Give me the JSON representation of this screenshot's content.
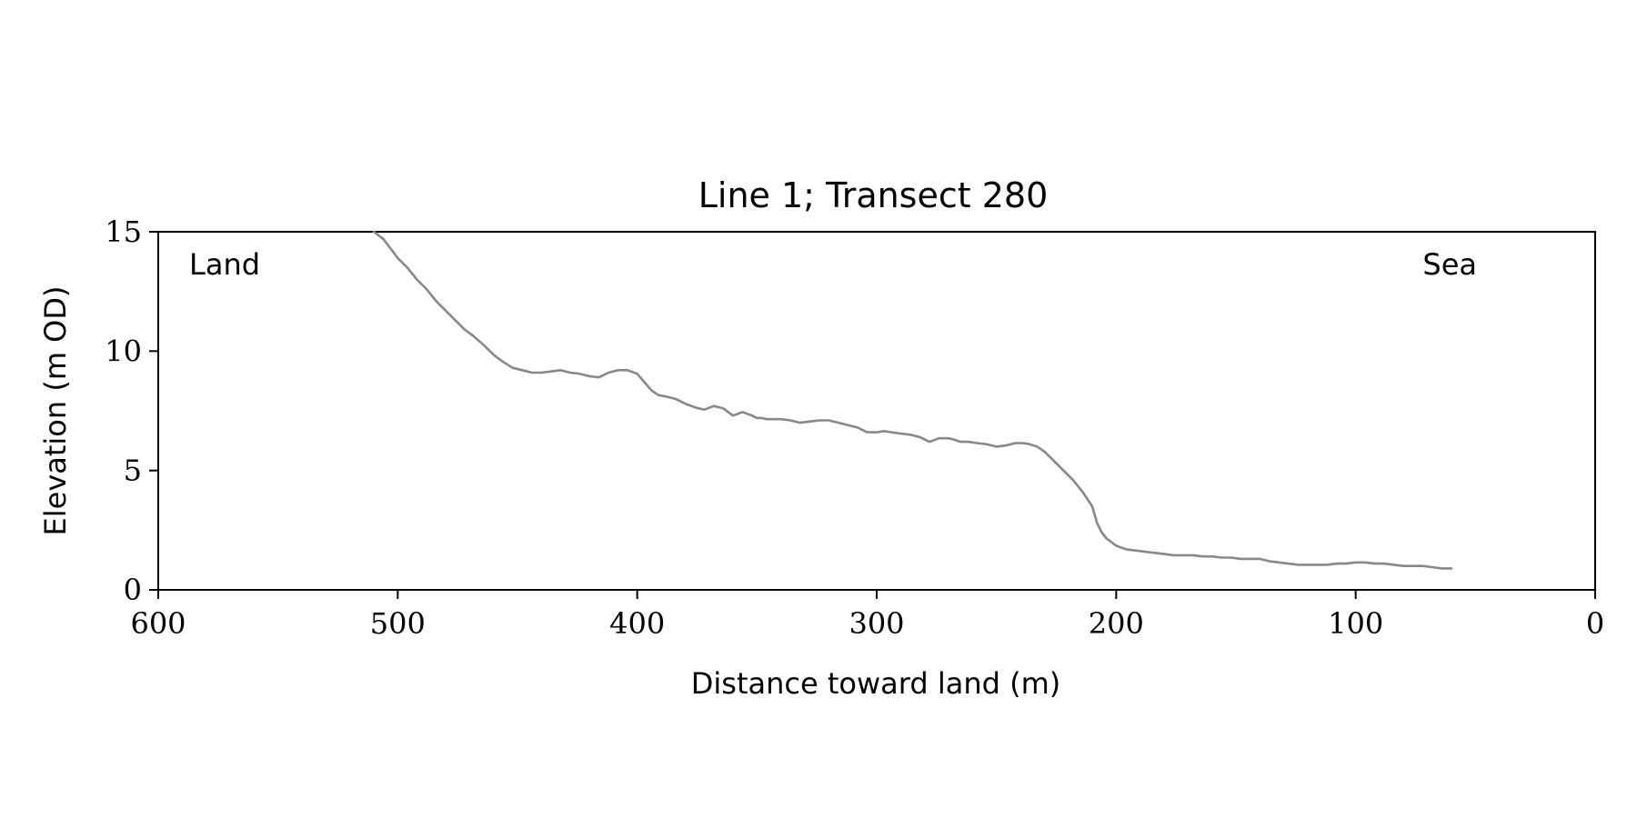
{
  "chart_data": {
    "type": "line",
    "title": "Line 1; Transect 280",
    "xlabel": "Distance toward land (m)",
    "ylabel": "Elevation (m OD)",
    "xlim": [
      600,
      0
    ],
    "ylim": [
      0,
      15
    ],
    "x_ticks": [
      "600",
      "500",
      "400",
      "300",
      "200",
      "100",
      "0"
    ],
    "y_ticks": [
      "0",
      "5",
      "10",
      "15"
    ],
    "grid": false,
    "annotations": {
      "left": "Land",
      "right": "Sea"
    },
    "line_color": "#888888",
    "series": [
      {
        "x": [
          510,
          506,
          503,
          500,
          496,
          492,
          488,
          484,
          480,
          476,
          472,
          468,
          464,
          460,
          456,
          452,
          448,
          444,
          440,
          436,
          432,
          428,
          424,
          420,
          416,
          412,
          408,
          404,
          400,
          397,
          394,
          391,
          388,
          384,
          380,
          376,
          372,
          368,
          364,
          360,
          356,
          352,
          350,
          348,
          346,
          344,
          340,
          336,
          332,
          328,
          324,
          320,
          316,
          312,
          308,
          304,
          300,
          297,
          294,
          290,
          286,
          282,
          278,
          274,
          270,
          268,
          265,
          262,
          258,
          254,
          250,
          246,
          242,
          239,
          236,
          233,
          230,
          228,
          225,
          222,
          218,
          214,
          210,
          208,
          206,
          204,
          202,
          200,
          196,
          192,
          188,
          184,
          180,
          176,
          172,
          168,
          164,
          160,
          156,
          152,
          148,
          144,
          140,
          136,
          132,
          128,
          124,
          120,
          116,
          112,
          108,
          104,
          100,
          96,
          92,
          88,
          84,
          80,
          76,
          72,
          68,
          64,
          60
        ],
        "y": [
          15.0,
          14.7,
          14.3,
          13.9,
          13.5,
          13.0,
          12.6,
          12.1,
          11.7,
          11.3,
          10.9,
          10.6,
          10.25,
          9.85,
          9.55,
          9.3,
          9.2,
          9.1,
          9.1,
          9.15,
          9.2,
          9.1,
          9.05,
          8.95,
          8.9,
          9.1,
          9.2,
          9.2,
          9.05,
          8.7,
          8.35,
          8.15,
          8.1,
          8.0,
          7.8,
          7.65,
          7.55,
          7.7,
          7.6,
          7.3,
          7.45,
          7.3,
          7.2,
          7.2,
          7.15,
          7.15,
          7.15,
          7.1,
          7.0,
          7.05,
          7.1,
          7.1,
          7.0,
          6.9,
          6.8,
          6.6,
          6.6,
          6.65,
          6.6,
          6.55,
          6.5,
          6.4,
          6.2,
          6.35,
          6.35,
          6.3,
          6.2,
          6.2,
          6.15,
          6.1,
          6.0,
          6.05,
          6.15,
          6.15,
          6.1,
          6.0,
          5.8,
          5.6,
          5.3,
          5.0,
          4.6,
          4.1,
          3.5,
          2.8,
          2.4,
          2.15,
          2.0,
          1.85,
          1.7,
          1.65,
          1.6,
          1.55,
          1.5,
          1.45,
          1.45,
          1.45,
          1.4,
          1.4,
          1.35,
          1.35,
          1.3,
          1.3,
          1.3,
          1.2,
          1.15,
          1.1,
          1.05,
          1.05,
          1.05,
          1.05,
          1.1,
          1.1,
          1.15,
          1.15,
          1.1,
          1.1,
          1.05,
          1.0,
          1.0,
          1.0,
          0.95,
          0.9,
          0.9
        ]
      }
    ]
  }
}
